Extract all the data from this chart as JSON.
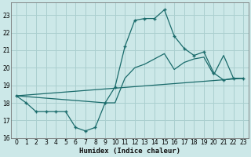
{
  "xlabel": "Humidex (Indice chaleur)",
  "background_color": "#cce8e8",
  "grid_color": "#aacfcf",
  "line_color": "#1a6b6b",
  "xlim": [
    -0.5,
    23.5
  ],
  "ylim": [
    16,
    23.7
  ],
  "yticks": [
    16,
    17,
    18,
    19,
    20,
    21,
    22,
    23
  ],
  "xticks": [
    0,
    1,
    2,
    3,
    4,
    5,
    6,
    7,
    8,
    9,
    10,
    11,
    12,
    13,
    14,
    15,
    16,
    17,
    18,
    19,
    20,
    21,
    22,
    23
  ],
  "series1_x": [
    0,
    1,
    2,
    3,
    4,
    5,
    6,
    7,
    8,
    9,
    10,
    11,
    12,
    13,
    14,
    15,
    16,
    17,
    18,
    19,
    20,
    21,
    22,
    23
  ],
  "series1_y": [
    18.4,
    18.0,
    17.5,
    17.5,
    17.5,
    17.5,
    16.6,
    16.4,
    16.6,
    18.0,
    18.9,
    21.2,
    22.7,
    22.8,
    22.8,
    23.3,
    21.8,
    21.1,
    20.7,
    20.9,
    19.7,
    19.3,
    19.4,
    19.4
  ],
  "series2_x": [
    0,
    9,
    10,
    11,
    12,
    13,
    14,
    15,
    16,
    17,
    18,
    19,
    20,
    21,
    22,
    23
  ],
  "series2_y": [
    18.4,
    18.0,
    18.0,
    19.4,
    20.0,
    20.2,
    20.5,
    20.8,
    19.9,
    20.3,
    20.5,
    20.6,
    19.6,
    20.7,
    19.4,
    19.4
  ],
  "series3_x": [
    0,
    23
  ],
  "series3_y": [
    18.4,
    19.4
  ]
}
